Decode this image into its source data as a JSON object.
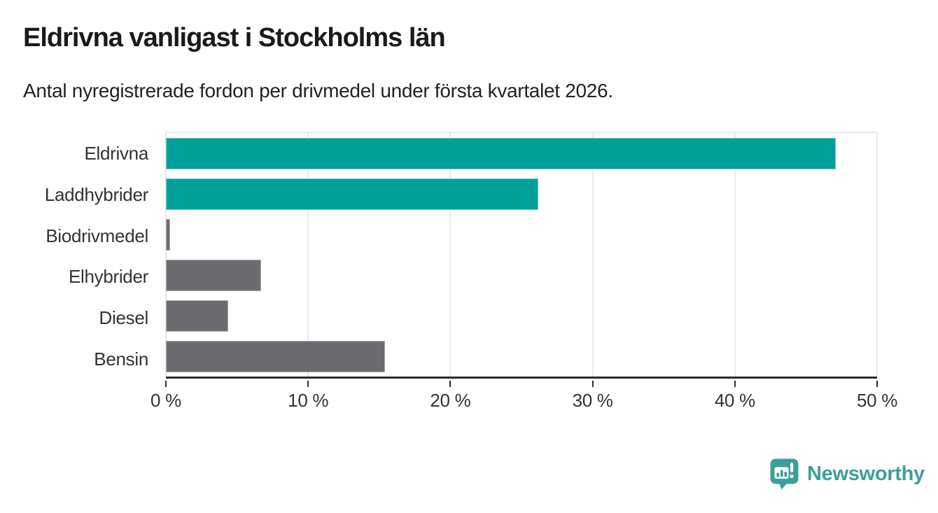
{
  "header": {
    "title": "Eldrivna vanligast i Stockholms län",
    "subtitle": "Antal nyregistrerade fordon per drivmedel under första kvartalet 2026."
  },
  "chart_data": {
    "type": "bar",
    "orientation": "horizontal",
    "categories": [
      "Eldrivna",
      "Laddhybrider",
      "Biodrivmedel",
      "Elhybrider",
      "Diesel",
      "Bensin"
    ],
    "values": [
      47.1,
      26.2,
      0.3,
      6.7,
      4.4,
      15.4
    ],
    "unit": "%",
    "xlim": [
      0,
      50
    ],
    "x_tick_values": [
      0,
      10,
      20,
      30,
      40,
      50
    ],
    "x_tick_labels": [
      "0 %",
      "10 %",
      "20 %",
      "30 %",
      "40 %",
      "50 %"
    ],
    "bar_colors": [
      "#00A099",
      "#00A099",
      "#6C6B70",
      "#6C6B70",
      "#6C6B70",
      "#6C6B70"
    ],
    "highlight_color": "#00A099",
    "default_color": "#6C6B70",
    "grid": true,
    "grid_color": "#E9E9E9",
    "axis_color": "#2B2B2B",
    "legend": "none"
  },
  "footer": {
    "brand_name": "Newsworthy",
    "brand_color": "#3E9E99",
    "logo_icon": "newsworthy-speech-bubble-bar-chart-icon"
  }
}
